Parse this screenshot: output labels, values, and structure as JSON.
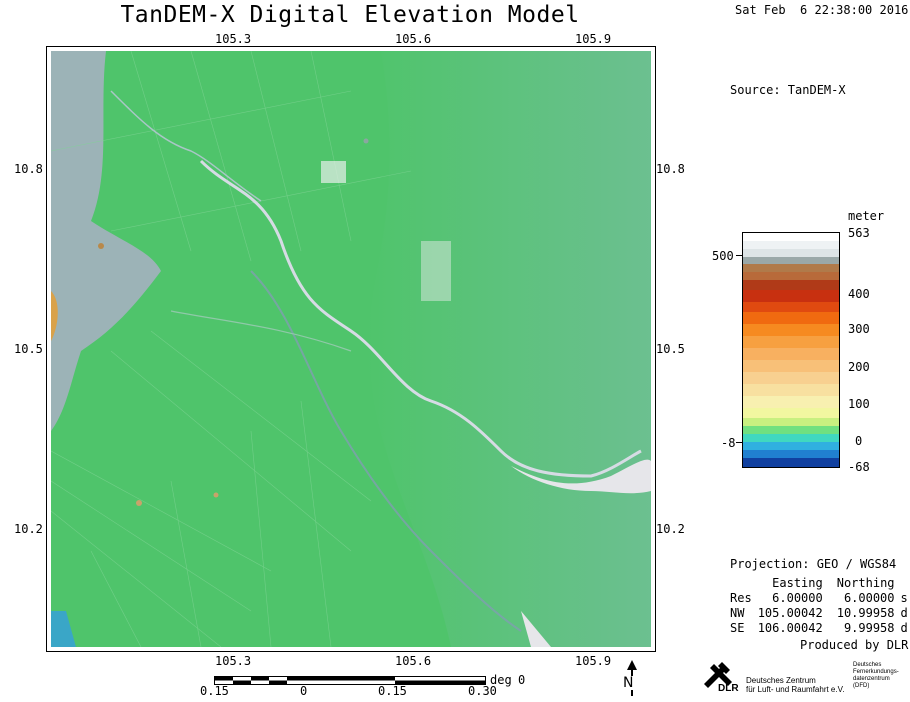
{
  "title": "TanDEM-X Digital Elevation Model",
  "datetime": "Sat Feb  6 22:38:00 2016",
  "source": "Source: TanDEM-X",
  "map": {
    "top_ticks": [
      "105.3",
      "105.6",
      "105.9"
    ],
    "bottom_ticks": [
      "105.3",
      "105.6",
      "105.9"
    ],
    "left_ticks": [
      "10.8",
      "10.5",
      "10.2"
    ],
    "right_ticks": [
      "10.8",
      "10.5",
      "10.2"
    ]
  },
  "colorbar": {
    "unit": "meter",
    "right_labels": [
      "563",
      "400",
      "300",
      "200",
      "100",
      "0",
      "-68"
    ],
    "left_labels": [
      "500",
      "-8"
    ]
  },
  "projection": "Projection: GEO / WGS84",
  "coords": {
    "header": [
      "Easting",
      "Northing"
    ],
    "rows": [
      {
        "label": "Res",
        "easting": "6.00000",
        "northing": "6.00000",
        "unit": "s"
      },
      {
        "label": "NW",
        "easting": "105.00042",
        "northing": "10.99958",
        "unit": "d"
      },
      {
        "label": "SE",
        "easting": "106.00042",
        "northing": "9.99958",
        "unit": "d"
      }
    ]
  },
  "produced_by": "Produced by DLR",
  "scale": {
    "unit": "deg",
    "ticks": [
      "0.15",
      "0",
      "0.15",
      "0.30"
    ],
    "zero_label": "0"
  },
  "north_label": "N",
  "dlr": {
    "logo_text": "DLR",
    "left_line1": "Deutsches Zentrum",
    "left_line2": "für Luft- und Raumfahrt e.V.",
    "right_line1": "Deutsches",
    "right_line2": "Fernerkundungs-",
    "right_line3": "datenzentrum",
    "right_line4": "(DFD)"
  },
  "colors": {
    "lowland_green": "#4fc46b",
    "delta_green": "#6cc08e",
    "water_gray": "#a9b0c4",
    "river_white": "#e6e6ea"
  }
}
